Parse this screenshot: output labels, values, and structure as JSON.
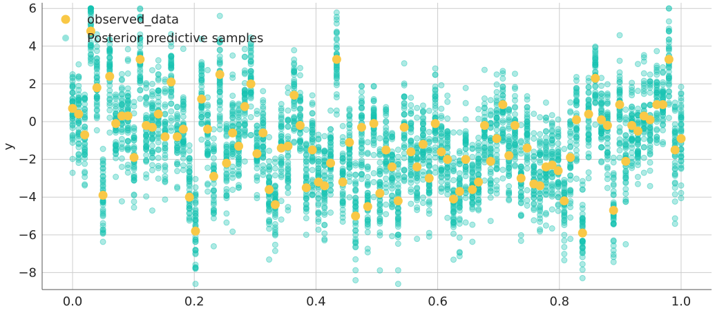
{
  "chart_data": {
    "type": "scatter",
    "title": "",
    "xlabel": "",
    "ylabel": "y",
    "xlim": [
      -0.05,
      1.05
    ],
    "ylim": [
      -8.9,
      6.3
    ],
    "xticks": [
      0.0,
      0.2,
      0.4,
      0.6,
      0.8,
      1.0
    ],
    "xtick_labels": [
      "0.0",
      "0.2",
      "0.4",
      "0.6",
      "0.8",
      "1.0"
    ],
    "yticks": [
      -8,
      -6,
      -4,
      -2,
      0,
      2,
      4,
      6
    ],
    "ytick_labels": [
      "−8",
      "−6",
      "−4",
      "−2",
      "0",
      "2",
      "4",
      "6"
    ],
    "grid": true,
    "legend_position": "top-left",
    "series": [
      {
        "name": "observed_data",
        "kind": "points",
        "color": "#f9c846",
        "x": [
          0.0,
          0.01,
          0.02,
          0.03,
          0.04,
          0.05,
          0.061,
          0.071,
          0.081,
          0.091,
          0.101,
          0.111,
          0.121,
          0.131,
          0.141,
          0.152,
          0.162,
          0.172,
          0.182,
          0.192,
          0.202,
          0.212,
          0.222,
          0.232,
          0.242,
          0.253,
          0.263,
          0.273,
          0.283,
          0.293,
          0.303,
          0.313,
          0.323,
          0.333,
          0.343,
          0.354,
          0.364,
          0.374,
          0.384,
          0.394,
          0.404,
          0.414,
          0.424,
          0.434,
          0.444,
          0.455,
          0.465,
          0.475,
          0.485,
          0.495,
          0.505,
          0.515,
          0.525,
          0.535,
          0.545,
          0.556,
          0.566,
          0.576,
          0.586,
          0.596,
          0.606,
          0.616,
          0.626,
          0.636,
          0.646,
          0.657,
          0.667,
          0.677,
          0.687,
          0.697,
          0.707,
          0.717,
          0.727,
          0.737,
          0.747,
          0.758,
          0.768,
          0.778,
          0.788,
          0.798,
          0.808,
          0.818,
          0.828,
          0.838,
          0.848,
          0.859,
          0.869,
          0.879,
          0.889,
          0.899,
          0.909,
          0.919,
          0.929,
          0.939,
          0.949,
          0.96,
          0.97,
          0.98,
          0.99,
          1.0
        ],
        "y": [
          0.7,
          0.4,
          -0.7,
          4.8,
          1.8,
          -3.9,
          2.4,
          -0.1,
          0.3,
          0.3,
          -1.9,
          3.3,
          -0.2,
          -0.3,
          0.4,
          -0.8,
          2.1,
          -0.8,
          -0.4,
          -4.0,
          -5.8,
          1.2,
          -0.4,
          -2.9,
          2.5,
          -2.2,
          -0.6,
          -1.3,
          0.8,
          2.0,
          -1.7,
          -0.6,
          -3.6,
          -4.4,
          -1.4,
          -1.3,
          1.4,
          -0.2,
          -3.5,
          -1.5,
          -3.2,
          -3.4,
          -2.2,
          3.3,
          -3.2,
          -1.1,
          -5.0,
          -0.3,
          -4.5,
          -0.1,
          -3.8,
          -1.5,
          -2.4,
          -4.2,
          -0.3,
          -1.6,
          -2.4,
          -1.2,
          -3.0,
          -0.1,
          -1.6,
          -2.0,
          -4.1,
          -3.7,
          -2.0,
          -3.6,
          -3.2,
          -0.2,
          -2.1,
          -0.9,
          0.9,
          -1.8,
          -0.2,
          -3.0,
          -1.4,
          -3.3,
          -3.4,
          -2.4,
          -2.3,
          -2.6,
          -4.2,
          -1.9,
          0.1,
          -5.9,
          0.4,
          2.3,
          0.1,
          -0.2,
          -4.7,
          0.9,
          -2.1,
          -0.2,
          -0.5,
          0.3,
          0.1,
          0.9,
          0.9,
          3.3,
          -1.5,
          -0.9
        ]
      },
      {
        "name": "Posterior predictive samples",
        "kind": "samples",
        "color": "#17c3b2",
        "samples_per_x": 40,
        "spread": 1.3,
        "x_of": "observed_data"
      }
    ]
  }
}
